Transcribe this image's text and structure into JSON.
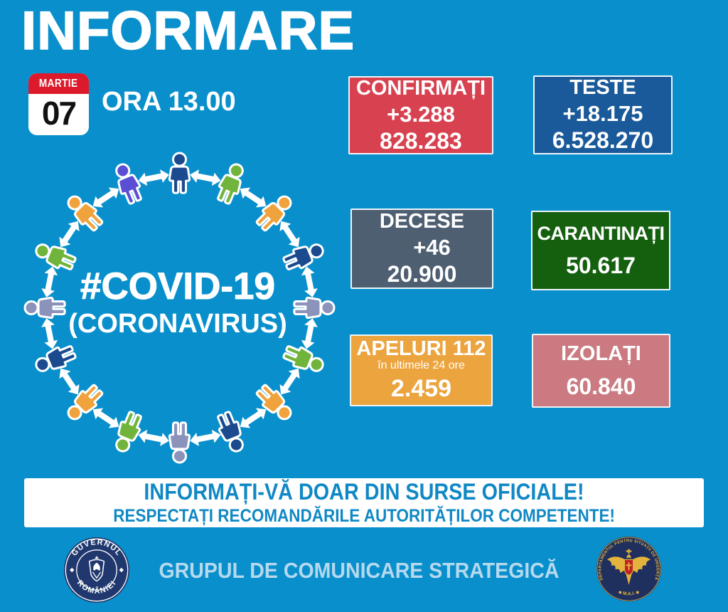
{
  "page": {
    "bg": "#0990cc"
  },
  "header": {
    "title": "INFORMARE",
    "calendar": {
      "month": "MARTIE",
      "day": "07",
      "header_color": "#dd1a2c"
    },
    "time": "ORA 13.00"
  },
  "covid_circle": {
    "hashtag": "#COVID-19",
    "subtitle": "(CORONAVIRUS)",
    "arrow_color": "#ffffff",
    "people_colors": [
      "#1c4a8e",
      "#70b43c",
      "#f0a23c",
      "#1c4a8e",
      "#8b93bb",
      "#70b43c",
      "#f0a23c",
      "#1c4a8e",
      "#8b93bb",
      "#70b43c",
      "#f0a23c",
      "#1c4a8e",
      "#8b93bb",
      "#70b43c",
      "#f0a23c",
      "#5a4fd4"
    ]
  },
  "stats": {
    "confirmed": {
      "label": "CONFIRMAȚI",
      "delta": "+3.288",
      "total": "828.283",
      "bg": "#d8414f"
    },
    "tests": {
      "label": "TESTE",
      "delta": "+18.175",
      "total": "6.528.270",
      "bg": "#1a5a9a"
    },
    "deaths": {
      "label": "DECESE",
      "delta": "+46",
      "total": "20.900",
      "bg": "#4e5f72"
    },
    "quarantined": {
      "label": "CARANTINAȚI",
      "total": "50.617",
      "bg": "#15600f"
    },
    "calls": {
      "label": "APELURI 112",
      "sublabel": "în ultimele 24 ore",
      "total": "2.459",
      "bg": "#eca43f"
    },
    "isolated": {
      "label": "IZOLAȚI",
      "total": "60.840",
      "bg": "#ca7a80"
    }
  },
  "banner": {
    "line1": "INFORMAȚI-VĂ DOAR DIN SURSE OFICIALE!",
    "line2": "RESPECTAȚI RECOMANDĂRILE AUTORITĂȚILOR COMPETENTE!",
    "text_color": "#1088c5",
    "bg": "#ffffff"
  },
  "footer": {
    "center_text": "GRUPUL DE COMUNICARE STRATEGICĂ",
    "center_color": "#b6d9ee",
    "gov_logo": {
      "top_text": "GUVERNUL",
      "bottom_text": "ROMÂNIEI",
      "bg": "#20386e"
    },
    "dsu_logo": {
      "ring_text": "DEPARTAMENTUL PENTRU SITUAȚII DE URGENȚĂ",
      "bottom_text": "◆ M.A.I. ◆",
      "bg": "#20305e",
      "gold": "#e3b33d"
    }
  }
}
